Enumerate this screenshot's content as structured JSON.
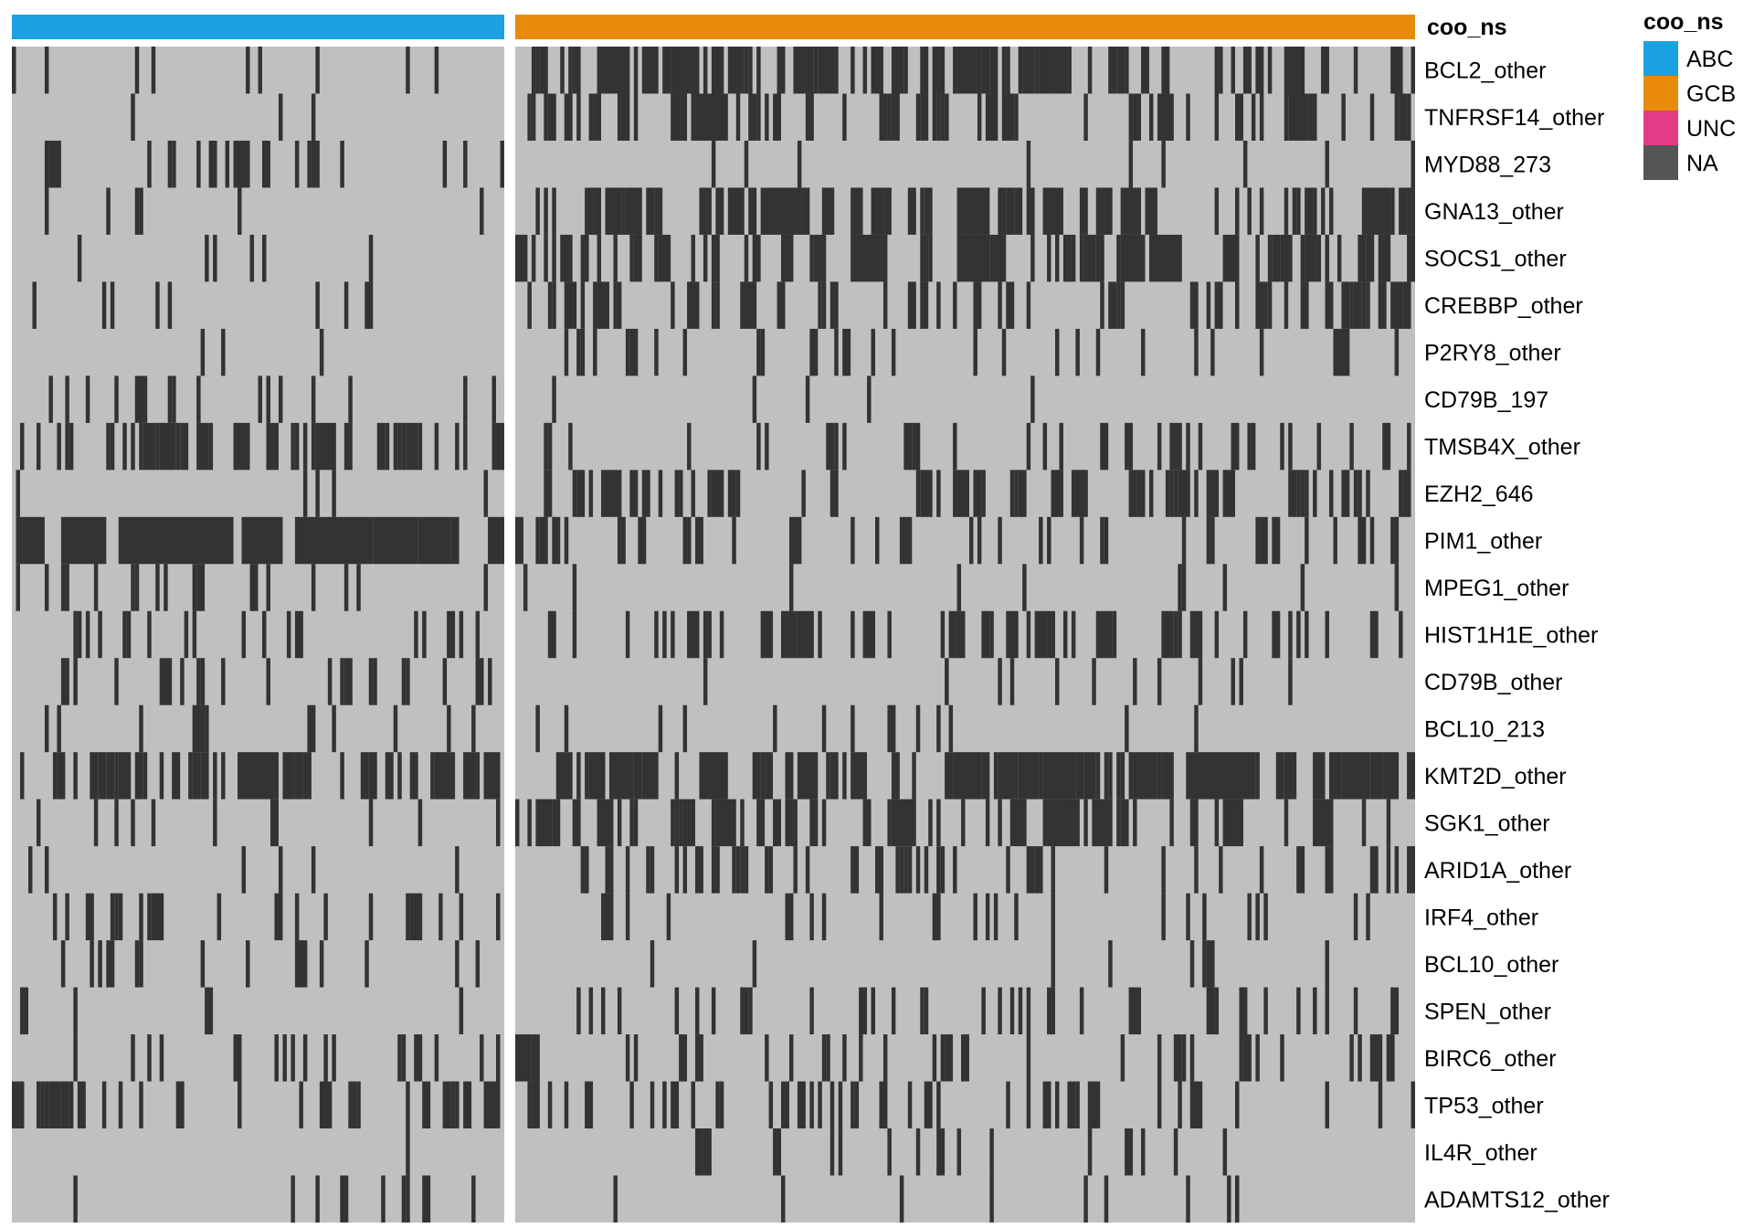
{
  "chart_data": {
    "type": "heatmap",
    "title": "",
    "colors": {
      "mutated": "#333333",
      "wildtype": "#c0c0c0",
      "ABC": "#1aa1e1",
      "GCB": "#e88b0a",
      "UNC": "#e23c86",
      "NA": "#555555"
    },
    "annotation": {
      "name": "coo_ns",
      "groups": [
        {
          "label": "ABC",
          "n_samples": 120
        },
        {
          "label": "GCB",
          "n_samples": 220
        }
      ]
    },
    "legend": {
      "title": "coo_ns",
      "position": "top-right",
      "items": [
        {
          "label": "ABC",
          "color": "#1aa1e1"
        },
        {
          "label": "GCB",
          "color": "#e88b0a"
        },
        {
          "label": "UNC",
          "color": "#e23c86"
        },
        {
          "label": "NA",
          "color": "#555555"
        }
      ]
    },
    "rows": [
      {
        "gene": "BCL2_other",
        "abc_rate": 0.05,
        "gcb_rate": 0.34
      },
      {
        "gene": "TNFRSF14_other",
        "abc_rate": 0.03,
        "gcb_rate": 0.28
      },
      {
        "gene": "MYD88_273",
        "abc_rate": 0.2,
        "gcb_rate": 0.03
      },
      {
        "gene": "GNA13_other",
        "abc_rate": 0.04,
        "gcb_rate": 0.3
      },
      {
        "gene": "SOCS1_other",
        "abc_rate": 0.07,
        "gcb_rate": 0.32
      },
      {
        "gene": "CREBBP_other",
        "abc_rate": 0.08,
        "gcb_rate": 0.3
      },
      {
        "gene": "P2RY8_other",
        "abc_rate": 0.04,
        "gcb_rate": 0.18
      },
      {
        "gene": "CD79B_197",
        "abc_rate": 0.14,
        "gcb_rate": 0.01
      },
      {
        "gene": "TMSB4X_other",
        "abc_rate": 0.3,
        "gcb_rate": 0.16
      },
      {
        "gene": "EZH2_646",
        "abc_rate": 0.02,
        "gcb_rate": 0.22
      },
      {
        "gene": "PIM1_other",
        "abc_rate": 0.55,
        "gcb_rate": 0.17
      },
      {
        "gene": "MPEG1_other",
        "abc_rate": 0.12,
        "gcb_rate": 0.03
      },
      {
        "gene": "HIST1H1E_other",
        "abc_rate": 0.1,
        "gcb_rate": 0.2
      },
      {
        "gene": "CD79B_other",
        "abc_rate": 0.16,
        "gcb_rate": 0.04
      },
      {
        "gene": "BCL10_213",
        "abc_rate": 0.09,
        "gcb_rate": 0.07
      },
      {
        "gene": "KMT2D_other",
        "abc_rate": 0.38,
        "gcb_rate": 0.42
      },
      {
        "gene": "SGK1_other",
        "abc_rate": 0.09,
        "gcb_rate": 0.28
      },
      {
        "gene": "ARID1A_other",
        "abc_rate": 0.04,
        "gcb_rate": 0.2
      },
      {
        "gene": "IRF4_other",
        "abc_rate": 0.15,
        "gcb_rate": 0.1
      },
      {
        "gene": "BCL10_other",
        "abc_rate": 0.09,
        "gcb_rate": 0.04
      },
      {
        "gene": "SPEN_other",
        "abc_rate": 0.04,
        "gcb_rate": 0.16
      },
      {
        "gene": "BIRC6_other",
        "abc_rate": 0.09,
        "gcb_rate": 0.15
      },
      {
        "gene": "TP53_other",
        "abc_rate": 0.2,
        "gcb_rate": 0.16
      },
      {
        "gene": "IL4R_other",
        "abc_rate": 0.04,
        "gcb_rate": 0.1
      },
      {
        "gene": "ADAMTS12_other",
        "abc_rate": 0.07,
        "gcb_rate": 0.02
      }
    ]
  }
}
